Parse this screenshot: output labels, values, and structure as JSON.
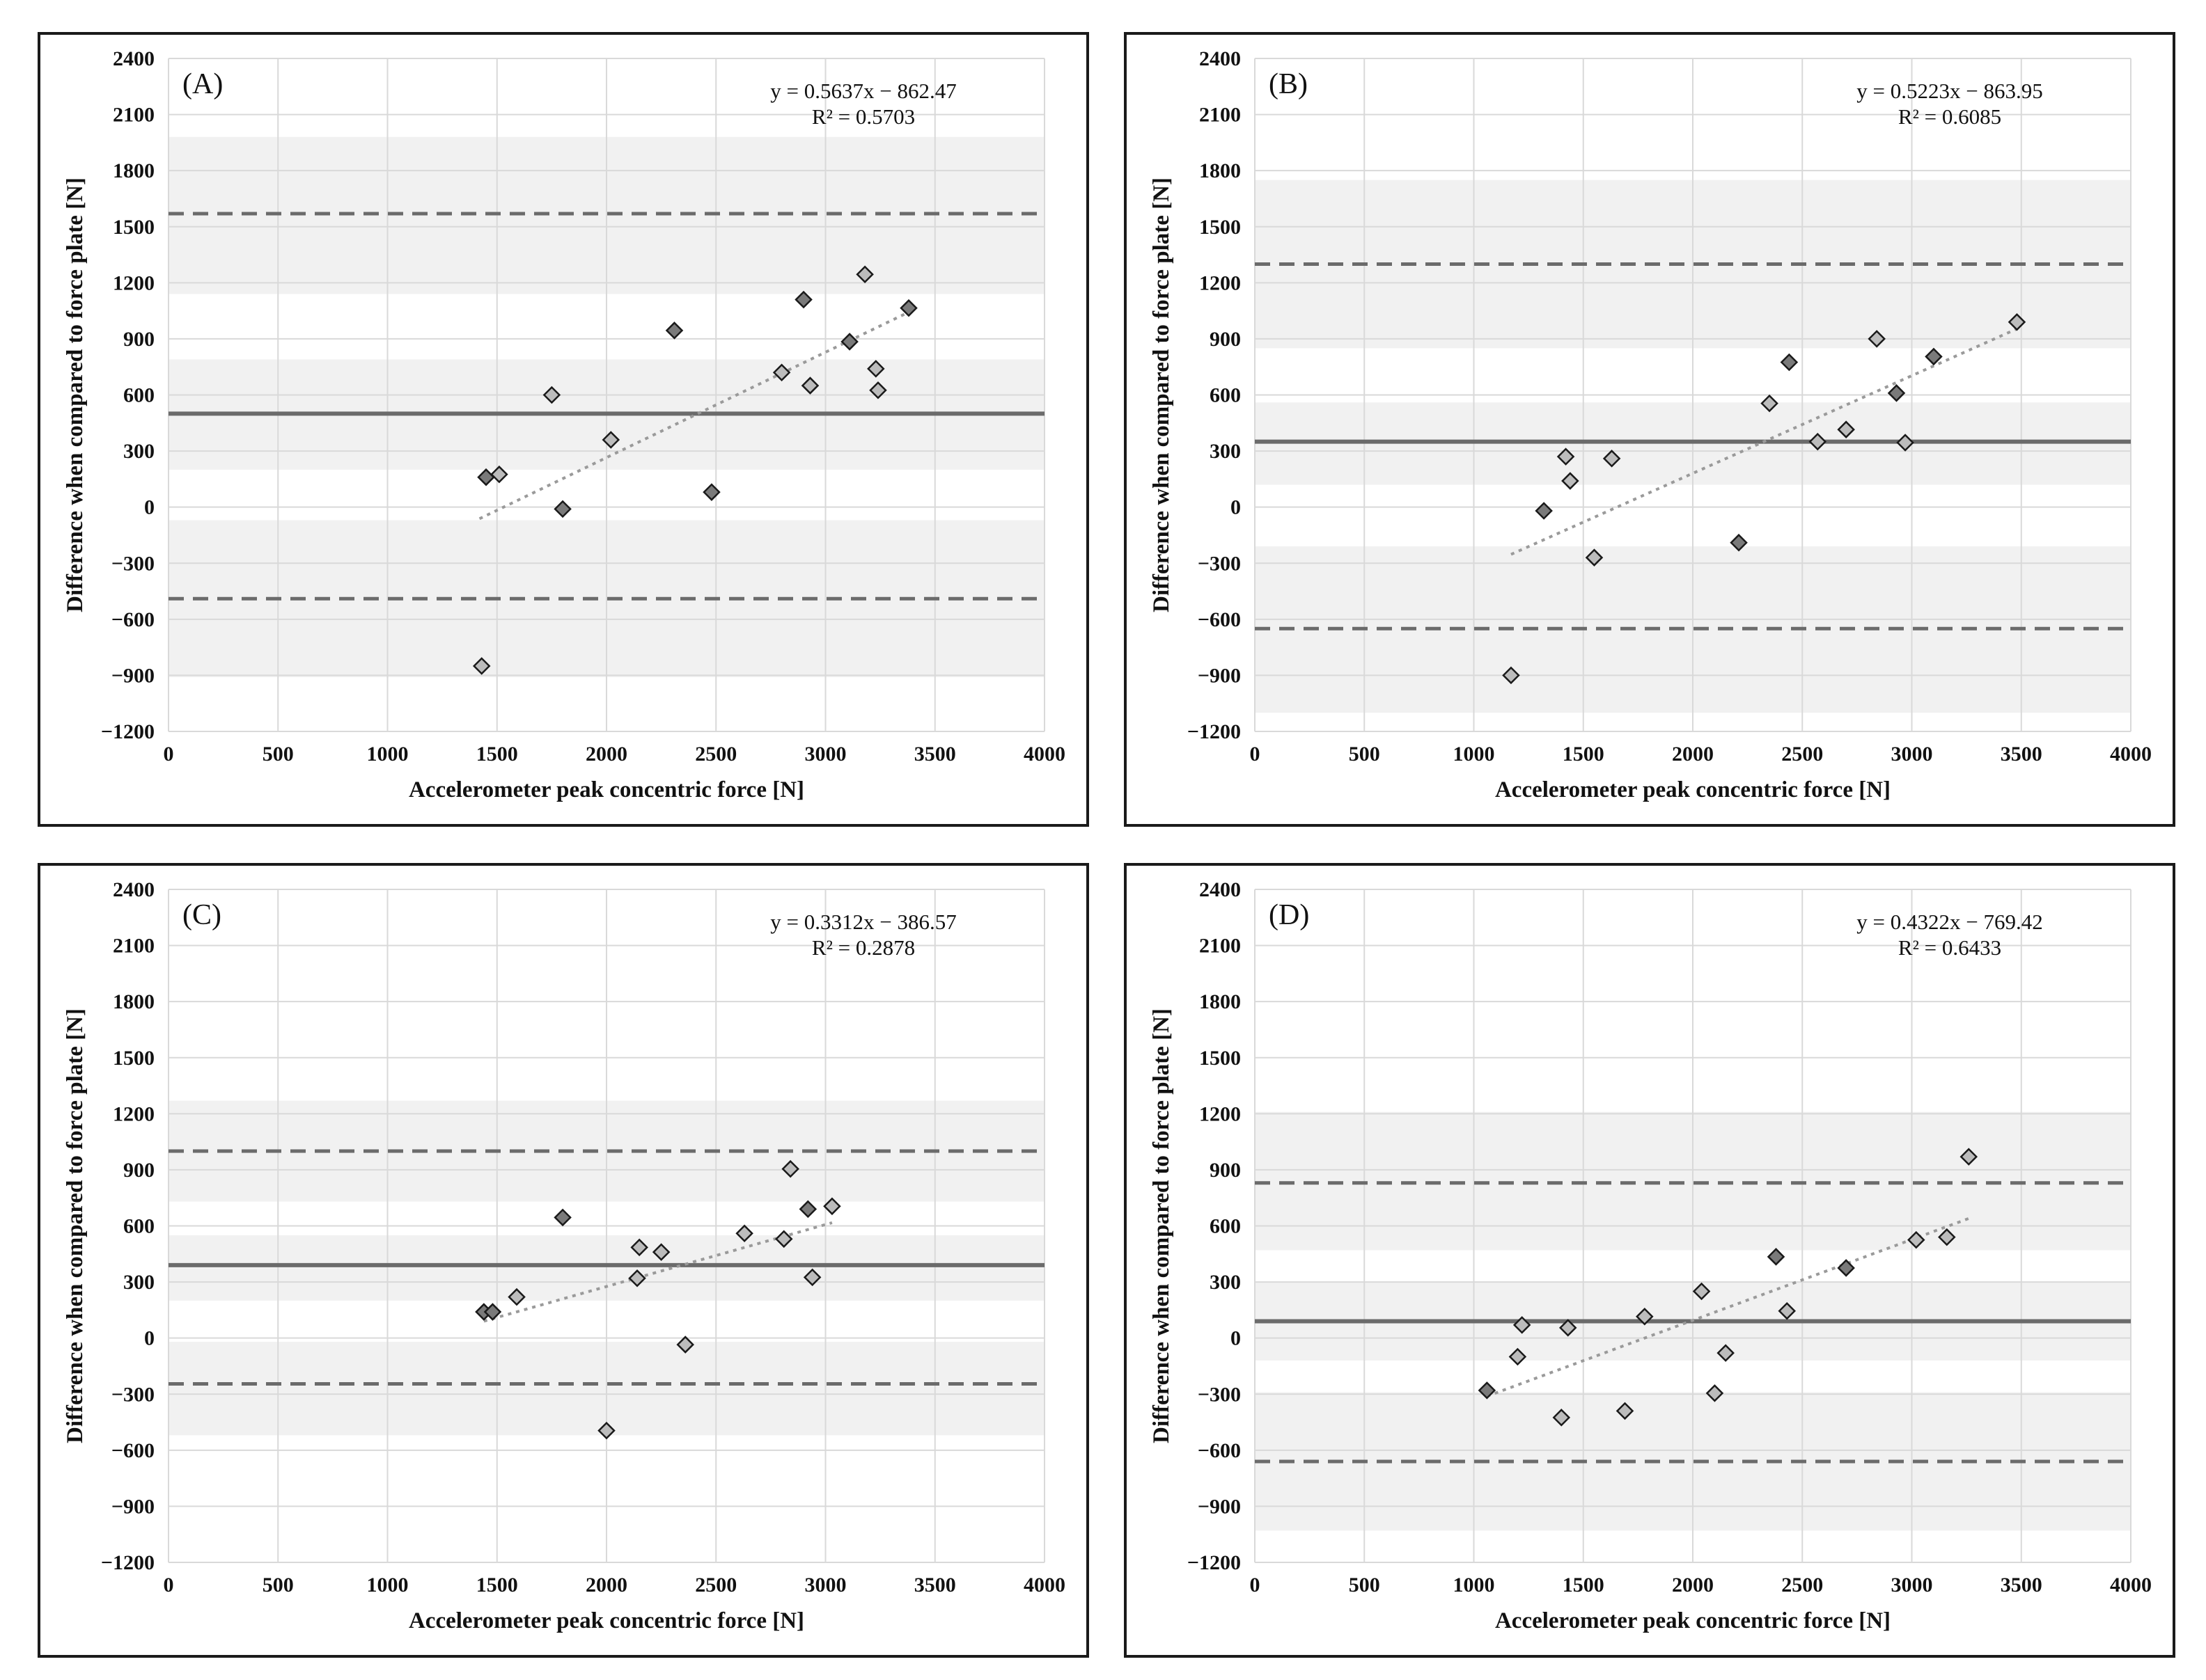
{
  "figure": {
    "colors": {
      "band": "#f1f1f1",
      "grid": "#d9d9d9",
      "mean_line": "#6b6b6b",
      "loa_line": "#6b6b6b",
      "trend": "#9a9a9a",
      "marker_dark": "#7a7a7a",
      "marker_light": "#bcbcbc",
      "marker_edge": "#1a1a1a"
    }
  },
  "chart_data": [
    {
      "type": "scatter",
      "panel_label": "(A)",
      "xlabel": "Accelerometer peak concentric force [N]",
      "ylabel": "Difference when compared to force plate [N]",
      "xlim": [
        0,
        4000
      ],
      "ylim": [
        -1200,
        2400
      ],
      "xticks": [
        0,
        500,
        1000,
        1500,
        2000,
        2500,
        3000,
        3500,
        4000
      ],
      "yticks": [
        -1200,
        -900,
        -600,
        -300,
        0,
        300,
        600,
        900,
        1200,
        1500,
        1800,
        2100,
        2400
      ],
      "xtick_labels": [
        "0",
        "500",
        "1000",
        "1500",
        "2000",
        "2500",
        "3000",
        "3500",
        "4000"
      ],
      "ytick_labels": [
        "−1200",
        "−900",
        "−600",
        "−300",
        "0",
        "300",
        "600",
        "900",
        "1200",
        "1500",
        "1800",
        "2100",
        "2400"
      ],
      "equation": "y = 0.5637x − 862.47",
      "r_squared": "R² = 0.5703",
      "mean_bias": 500,
      "upper_loa": 1570,
      "lower_loa": -490,
      "bands": [
        [
          1140,
          1980
        ],
        [
          200,
          790
        ],
        [
          -910,
          -70
        ]
      ],
      "trend": {
        "slope": 0.5637,
        "intercept": -862.47,
        "x_range": [
          1420,
          3380
        ]
      },
      "points": [
        {
          "x": 1430,
          "y": -850,
          "group": "light"
        },
        {
          "x": 1450,
          "y": 160,
          "group": "dark"
        },
        {
          "x": 1510,
          "y": 175,
          "group": "light"
        },
        {
          "x": 1750,
          "y": 600,
          "group": "light"
        },
        {
          "x": 1800,
          "y": -10,
          "group": "dark"
        },
        {
          "x": 2020,
          "y": 360,
          "group": "light"
        },
        {
          "x": 2310,
          "y": 945,
          "group": "dark"
        },
        {
          "x": 2480,
          "y": 80,
          "group": "dark"
        },
        {
          "x": 2800,
          "y": 720,
          "group": "light"
        },
        {
          "x": 2900,
          "y": 1110,
          "group": "dark"
        },
        {
          "x": 2930,
          "y": 650,
          "group": "light"
        },
        {
          "x": 3110,
          "y": 885,
          "group": "dark"
        },
        {
          "x": 3180,
          "y": 1245,
          "group": "light"
        },
        {
          "x": 3230,
          "y": 740,
          "group": "light"
        },
        {
          "x": 3240,
          "y": 625,
          "group": "light"
        },
        {
          "x": 3380,
          "y": 1065,
          "group": "dark"
        }
      ]
    },
    {
      "type": "scatter",
      "panel_label": "(B)",
      "xlabel": "Accelerometer peak concentric force [N]",
      "ylabel": "Difference when compared to force plate [N]",
      "xlim": [
        0,
        4000
      ],
      "ylim": [
        -1200,
        2400
      ],
      "xticks": [
        0,
        500,
        1000,
        1500,
        2000,
        2500,
        3000,
        3500,
        4000
      ],
      "yticks": [
        -1200,
        -900,
        -600,
        -300,
        0,
        300,
        600,
        900,
        1200,
        1500,
        1800,
        2100,
        2400
      ],
      "xtick_labels": [
        "0",
        "500",
        "1000",
        "1500",
        "2000",
        "2500",
        "3000",
        "3500",
        "4000"
      ],
      "ytick_labels": [
        "−1200",
        "−900",
        "−600",
        "−300",
        "0",
        "300",
        "600",
        "900",
        "1200",
        "1500",
        "1800",
        "2100",
        "2400"
      ],
      "equation": "y = 0.5223x − 863.95",
      "r_squared": "R² = 0.6085",
      "mean_bias": 350,
      "upper_loa": 1300,
      "lower_loa": -650,
      "bands": [
        [
          850,
          1750
        ],
        [
          120,
          560
        ],
        [
          -1100,
          -210
        ]
      ],
      "trend": {
        "slope": 0.5223,
        "intercept": -863.95,
        "x_range": [
          1170,
          3480
        ]
      },
      "points": [
        {
          "x": 1170,
          "y": -900,
          "group": "light"
        },
        {
          "x": 1320,
          "y": -20,
          "group": "dark"
        },
        {
          "x": 1420,
          "y": 270,
          "group": "light"
        },
        {
          "x": 1440,
          "y": 140,
          "group": "light"
        },
        {
          "x": 1550,
          "y": -270,
          "group": "light"
        },
        {
          "x": 1630,
          "y": 260,
          "group": "light"
        },
        {
          "x": 2210,
          "y": -190,
          "group": "dark"
        },
        {
          "x": 2350,
          "y": 555,
          "group": "light"
        },
        {
          "x": 2440,
          "y": 775,
          "group": "dark"
        },
        {
          "x": 2570,
          "y": 350,
          "group": "light"
        },
        {
          "x": 2700,
          "y": 415,
          "group": "light"
        },
        {
          "x": 2840,
          "y": 900,
          "group": "light"
        },
        {
          "x": 2930,
          "y": 610,
          "group": "dark"
        },
        {
          "x": 2970,
          "y": 345,
          "group": "light"
        },
        {
          "x": 3100,
          "y": 805,
          "group": "dark"
        },
        {
          "x": 3480,
          "y": 990,
          "group": "light"
        }
      ]
    },
    {
      "type": "scatter",
      "panel_label": "(C)",
      "xlabel": "Accelerometer peak concentric force [N]",
      "ylabel": "Difference when compared to force plate [N]",
      "xlim": [
        0,
        4000
      ],
      "ylim": [
        -1200,
        2400
      ],
      "xticks": [
        0,
        500,
        1000,
        1500,
        2000,
        2500,
        3000,
        3500,
        4000
      ],
      "yticks": [
        -1200,
        -900,
        -600,
        -300,
        0,
        300,
        600,
        900,
        1200,
        1500,
        1800,
        2100,
        2400
      ],
      "xtick_labels": [
        "0",
        "500",
        "1000",
        "1500",
        "2000",
        "2500",
        "3000",
        "3500",
        "4000"
      ],
      "ytick_labels": [
        "−1200",
        "−900",
        "−600",
        "−300",
        "0",
        "300",
        "600",
        "900",
        "1200",
        "1500",
        "1800",
        "2100",
        "2400"
      ],
      "equation": "y = 0.3312x − 386.57",
      "r_squared": "R² = 0.2878",
      "mean_bias": 390,
      "upper_loa": 1000,
      "lower_loa": -245,
      "bands": [
        [
          730,
          1270
        ],
        [
          200,
          550
        ],
        [
          -520,
          -20
        ]
      ],
      "trend": {
        "slope": 0.3312,
        "intercept": -386.57,
        "x_range": [
          1440,
          3030
        ]
      },
      "points": [
        {
          "x": 1440,
          "y": 140,
          "group": "dark"
        },
        {
          "x": 1480,
          "y": 140,
          "group": "dark"
        },
        {
          "x": 1590,
          "y": 220,
          "group": "light"
        },
        {
          "x": 1800,
          "y": 645,
          "group": "dark"
        },
        {
          "x": 2000,
          "y": -495,
          "group": "light"
        },
        {
          "x": 2140,
          "y": 320,
          "group": "light"
        },
        {
          "x": 2150,
          "y": 485,
          "group": "light"
        },
        {
          "x": 2250,
          "y": 460,
          "group": "light"
        },
        {
          "x": 2360,
          "y": -35,
          "group": "light"
        },
        {
          "x": 2630,
          "y": 560,
          "group": "light"
        },
        {
          "x": 2810,
          "y": 530,
          "group": "light"
        },
        {
          "x": 2840,
          "y": 905,
          "group": "light"
        },
        {
          "x": 2920,
          "y": 690,
          "group": "dark"
        },
        {
          "x": 2940,
          "y": 325,
          "group": "light"
        },
        {
          "x": 3030,
          "y": 705,
          "group": "light"
        }
      ]
    },
    {
      "type": "scatter",
      "panel_label": "(D)",
      "xlabel": "Accelerometer peak concentric force [N]",
      "ylabel": "Difference when compared to force plate [N]",
      "xlim": [
        0,
        4000
      ],
      "ylim": [
        -1200,
        2400
      ],
      "xticks": [
        0,
        500,
        1000,
        1500,
        2000,
        2500,
        3000,
        3500,
        4000
      ],
      "yticks": [
        -1200,
        -900,
        -600,
        -300,
        0,
        300,
        600,
        900,
        1200,
        1500,
        1800,
        2100,
        2400
      ],
      "xtick_labels": [
        "0",
        "500",
        "1000",
        "1500",
        "2000",
        "2500",
        "3000",
        "3500",
        "4000"
      ],
      "ytick_labels": [
        "−1200",
        "−900",
        "−600",
        "−300",
        "0",
        "300",
        "600",
        "900",
        "1200",
        "1500",
        "1800",
        "2100",
        "2400"
      ],
      "equation": "y = 0.4322x − 769.42",
      "r_squared": "R² = 0.6433",
      "mean_bias": 90,
      "upper_loa": 830,
      "lower_loa": -660,
      "bands": [
        [
          470,
          1210
        ],
        [
          -120,
          300
        ],
        [
          -1030,
          -290
        ]
      ],
      "trend": {
        "slope": 0.4322,
        "intercept": -769.42,
        "x_range": [
          1060,
          3260
        ]
      },
      "points": [
        {
          "x": 1060,
          "y": -280,
          "group": "dark"
        },
        {
          "x": 1200,
          "y": -100,
          "group": "light"
        },
        {
          "x": 1220,
          "y": 70,
          "group": "light"
        },
        {
          "x": 1400,
          "y": -425,
          "group": "light"
        },
        {
          "x": 1430,
          "y": 55,
          "group": "light"
        },
        {
          "x": 1690,
          "y": -390,
          "group": "light"
        },
        {
          "x": 1780,
          "y": 115,
          "group": "light"
        },
        {
          "x": 2040,
          "y": 250,
          "group": "light"
        },
        {
          "x": 2100,
          "y": -295,
          "group": "light"
        },
        {
          "x": 2150,
          "y": -80,
          "group": "light"
        },
        {
          "x": 2380,
          "y": 435,
          "group": "dark"
        },
        {
          "x": 2430,
          "y": 145,
          "group": "light"
        },
        {
          "x": 2700,
          "y": 375,
          "group": "dark"
        },
        {
          "x": 3020,
          "y": 525,
          "group": "light"
        },
        {
          "x": 3160,
          "y": 540,
          "group": "light"
        },
        {
          "x": 3260,
          "y": 970,
          "group": "light"
        }
      ]
    }
  ]
}
